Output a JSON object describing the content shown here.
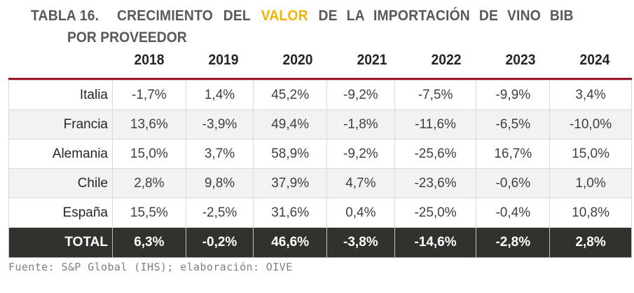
{
  "title": {
    "prefix": "TABLA 16.",
    "words": [
      "CRECIMIENTO",
      "DEL"
    ],
    "highlight": "VALOR",
    "highlight_color": "#f2b400",
    "rest": "DE LA IMPORTACIÓN DE VINO BIB",
    "line2": "POR PROVEEDOR"
  },
  "table": {
    "columns": [
      "2018",
      "2019",
      "2020",
      "2021",
      "2022",
      "2023",
      "2024"
    ],
    "rows": [
      {
        "label": "Italia",
        "values": [
          "-1,7%",
          "1,4%",
          "45,2%",
          "-9,2%",
          "-7,5%",
          "-9,9%",
          "3,4%"
        ]
      },
      {
        "label": "Francia",
        "values": [
          "13,6%",
          "-3,9%",
          "49,4%",
          "-1,8%",
          "-11,6%",
          "-6,5%",
          "-10,0%"
        ]
      },
      {
        "label": "Alemania",
        "values": [
          "15,0%",
          "3,7%",
          "58,9%",
          "-9,2%",
          "-25,6%",
          "16,7%",
          "15,0%"
        ]
      },
      {
        "label": "Chile",
        "values": [
          "2,8%",
          "9,8%",
          "37,9%",
          "4,7%",
          "-23,6%",
          "-0,6%",
          "1,0%"
        ]
      },
      {
        "label": "España",
        "values": [
          "15,5%",
          "-2,5%",
          "31,6%",
          "0,4%",
          "-25,0%",
          "-0,4%",
          "10,8%"
        ]
      }
    ],
    "total": {
      "label": "TOTAL",
      "values": [
        "6,3%",
        "-0,2%",
        "46,6%",
        "-3,8%",
        "-14,6%",
        "-2,8%",
        "2,8%"
      ]
    },
    "accent_color": "#a0162e"
  },
  "source": "Fuente: S&P Global (IHS); elaboración: OIVE"
}
